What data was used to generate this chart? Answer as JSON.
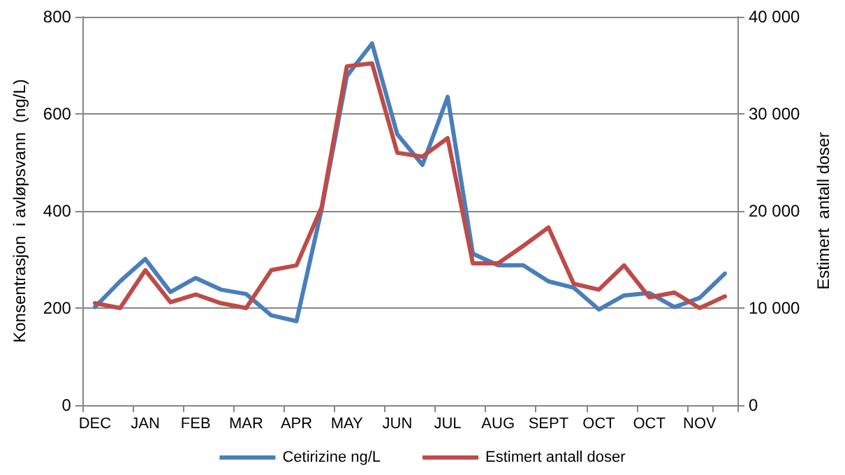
{
  "chart_data": {
    "type": "line",
    "ylabel": "Konsentrasjon  i avløpsvann  (ng/L)",
    "y2label": "Estimert  antall doser",
    "categories": [
      "DEC",
      null,
      "JAN",
      null,
      "FEB",
      null,
      "MAR",
      null,
      "APR",
      null,
      "MAY",
      null,
      "JUN",
      null,
      "JUL",
      null,
      "AUG",
      null,
      "SEPT",
      null,
      "OCT",
      null,
      "OCT",
      null,
      "NOV",
      null
    ],
    "series": [
      {
        "name": "Cetirizine ng/L",
        "color": "#4a7ebb",
        "values": [
          202,
          255,
          301,
          233,
          262,
          238,
          229,
          185,
          173,
          404,
          678,
          745,
          558,
          495,
          635,
          312,
          288,
          288,
          255,
          242,
          197,
          226,
          231,
          202,
          221,
          271
        ]
      },
      {
        "name": "Estimert antall doser",
        "color": "#be4b48",
        "axis": "y2",
        "values": [
          10500,
          10000,
          13900,
          10600,
          11400,
          10500,
          10000,
          13900,
          14400,
          20400,
          34900,
          35200,
          26000,
          25600,
          27500,
          14600,
          14600,
          16400,
          18300,
          12500,
          11900,
          14400,
          11100,
          11600,
          10000,
          11200
        ]
      }
    ],
    "ylim": [
      0,
      800
    ],
    "yticks": [
      0,
      200,
      400,
      600,
      800
    ],
    "y2lim": [
      0,
      40000
    ],
    "y2ticks": [
      0,
      {
        "value": 10000,
        "label": "10 000"
      },
      {
        "value": 20000,
        "label": "20 000"
      },
      {
        "value": 30000,
        "label": "30 000"
      },
      {
        "value": 40000,
        "label": "40 000"
      }
    ],
    "grid": "y",
    "legend": "bottom",
    "marker": "none",
    "line_style": "solid"
  }
}
